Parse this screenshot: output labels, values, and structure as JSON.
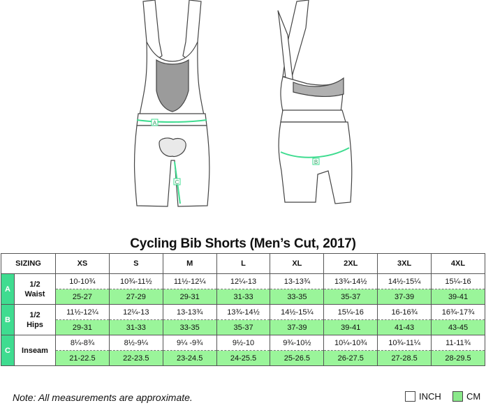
{
  "title": "Cycling Bib Shorts (Men’s Cut, 2017)",
  "figure_markers": [
    "A",
    "B",
    "C"
  ],
  "table": {
    "sizing_label": "SIZING",
    "sizes": [
      "XS",
      "S",
      "M",
      "L",
      "XL",
      "2XL",
      "3XL",
      "4XL"
    ],
    "rows": [
      {
        "letter": "A",
        "label": "1/2\nWaist",
        "inch": [
          "10-10¾",
          "10¾-11½",
          "11½-12¼",
          "12¼-13",
          "13-13¾",
          "13¾-14½",
          "14½-15¼",
          "15¼-16"
        ],
        "cm": [
          "25-27",
          "27-29",
          "29-31",
          "31-33",
          "33-35",
          "35-37",
          "37-39",
          "39-41"
        ]
      },
      {
        "letter": "B",
        "label": "1/2\nHips",
        "inch": [
          "11½-12¼",
          "12¼-13",
          "13-13¾",
          "13¾-14½",
          "14½-15¼",
          "15¼-16",
          "16-16¾",
          "16¾-17¾"
        ],
        "cm": [
          "29-31",
          "31-33",
          "33-35",
          "35-37",
          "37-39",
          "39-41",
          "41-43",
          "43-45"
        ]
      },
      {
        "letter": "C",
        "label": "Inseam",
        "inch": [
          "8¼-8¾",
          "8½-9¼",
          "9¼ -9¾",
          "9½-10",
          "9¾-10½",
          "10¼-10¾",
          "10¾-11¼",
          "11-11¾"
        ],
        "cm": [
          "21-22.5",
          "22-23.5",
          "23-24.5",
          "24-25.5",
          "25-26.5",
          "26-27.5",
          "27-28.5",
          "28-29.5"
        ]
      }
    ]
  },
  "note": "Note: All measurements are approximate.",
  "legend": {
    "inch_label": "INCH",
    "cm_label": "CM"
  },
  "colors": {
    "accent_green": "#3fdc90",
    "cm_fill": "#9af59a",
    "legend_cm_fill": "#8ae88a"
  }
}
